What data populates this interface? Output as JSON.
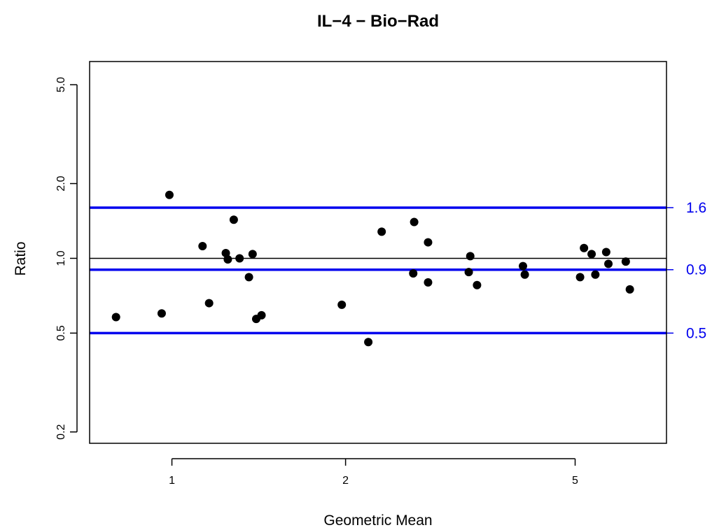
{
  "chart_data": {
    "type": "scatter",
    "title": "IL−4 − Bio−Rad",
    "xlabel": "Geometric Mean",
    "ylabel": "Ratio",
    "x_scale": "log",
    "y_scale": "log",
    "xlim": [
      0.72,
      7.2
    ],
    "ylim": [
      0.18,
      6.2
    ],
    "x_ticks": [
      {
        "value": 1,
        "label": "1"
      },
      {
        "value": 2,
        "label": "2"
      },
      {
        "value": 5,
        "label": "5"
      }
    ],
    "y_ticks": [
      {
        "value": 0.2,
        "label": "0.2"
      },
      {
        "value": 0.5,
        "label": "0.5"
      },
      {
        "value": 1.0,
        "label": "1.0"
      },
      {
        "value": 2.0,
        "label": "2.0"
      },
      {
        "value": 5.0,
        "label": "5.0"
      }
    ],
    "grid": false,
    "reference_lines": [
      {
        "y": 1.0,
        "color": "#000000",
        "label": ""
      },
      {
        "y": 1.6,
        "color": "#0000ee",
        "label": "1.6"
      },
      {
        "y": 0.9,
        "color": "#0000ee",
        "label": "0.9"
      },
      {
        "y": 0.5,
        "color": "#0000ee",
        "label": "0.5"
      }
    ],
    "point_color": "#000000",
    "points": [
      {
        "x": 0.8,
        "y": 0.58
      },
      {
        "x": 0.96,
        "y": 0.6
      },
      {
        "x": 0.99,
        "y": 1.8
      },
      {
        "x": 1.13,
        "y": 1.12
      },
      {
        "x": 1.16,
        "y": 0.66
      },
      {
        "x": 1.24,
        "y": 1.05
      },
      {
        "x": 1.25,
        "y": 0.99
      },
      {
        "x": 1.28,
        "y": 1.43
      },
      {
        "x": 1.31,
        "y": 1.0
      },
      {
        "x": 1.36,
        "y": 0.84
      },
      {
        "x": 1.38,
        "y": 1.04
      },
      {
        "x": 1.4,
        "y": 0.57
      },
      {
        "x": 1.43,
        "y": 0.59
      },
      {
        "x": 1.97,
        "y": 0.65
      },
      {
        "x": 2.19,
        "y": 0.46
      },
      {
        "x": 2.31,
        "y": 1.28
      },
      {
        "x": 2.62,
        "y": 0.87
      },
      {
        "x": 2.63,
        "y": 1.4
      },
      {
        "x": 2.78,
        "y": 0.8
      },
      {
        "x": 2.78,
        "y": 1.16
      },
      {
        "x": 3.27,
        "y": 0.88
      },
      {
        "x": 3.29,
        "y": 1.02
      },
      {
        "x": 3.38,
        "y": 0.78
      },
      {
        "x": 4.06,
        "y": 0.93
      },
      {
        "x": 4.09,
        "y": 0.86
      },
      {
        "x": 5.1,
        "y": 0.84
      },
      {
        "x": 5.18,
        "y": 1.1
      },
      {
        "x": 5.34,
        "y": 1.04
      },
      {
        "x": 5.42,
        "y": 0.86
      },
      {
        "x": 5.66,
        "y": 1.06
      },
      {
        "x": 5.71,
        "y": 0.95
      },
      {
        "x": 6.12,
        "y": 0.97
      },
      {
        "x": 6.22,
        "y": 0.75
      }
    ]
  }
}
